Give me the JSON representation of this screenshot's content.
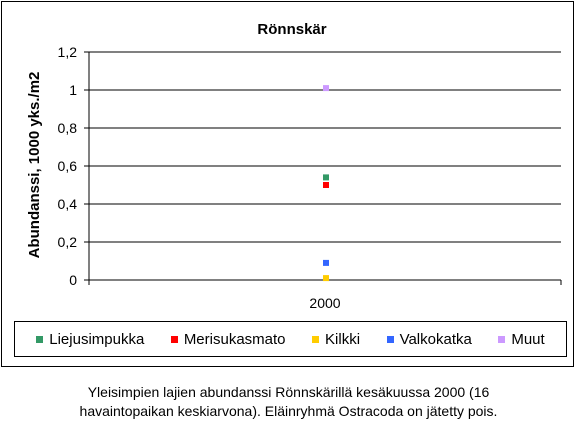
{
  "chart_data": {
    "type": "scatter",
    "title": "Rönnskär",
    "ylabel": "Abundanssi, 1000 yks./m2",
    "xlabel": "",
    "categories": [
      "2000"
    ],
    "ylim": [
      0,
      1.2
    ],
    "yticks": [
      "0",
      "0,2",
      "0,4",
      "0,6",
      "0,8",
      "1",
      "1,2"
    ],
    "grid": true,
    "legend_position": "bottom",
    "series": [
      {
        "name": "Liejusimpukka",
        "color": "#339966",
        "values": [
          0.54
        ]
      },
      {
        "name": "Merisukasmato",
        "color": "#ff0000",
        "values": [
          0.5
        ]
      },
      {
        "name": "Kilkki",
        "color": "#ffcc00",
        "values": [
          0.01
        ]
      },
      {
        "name": "Valkokatka",
        "color": "#3366ff",
        "values": [
          0.09
        ]
      },
      {
        "name": "Muut",
        "color": "#cc99ff",
        "values": [
          1.01
        ]
      }
    ]
  },
  "caption": {
    "line1": "Yleisimpien lajien abundanssi Rönnskärillä kesäkuussa 2000 (16",
    "line2": "havaintopaikan keskiarvona). Eläinryhmä Ostracoda on jätetty pois."
  }
}
